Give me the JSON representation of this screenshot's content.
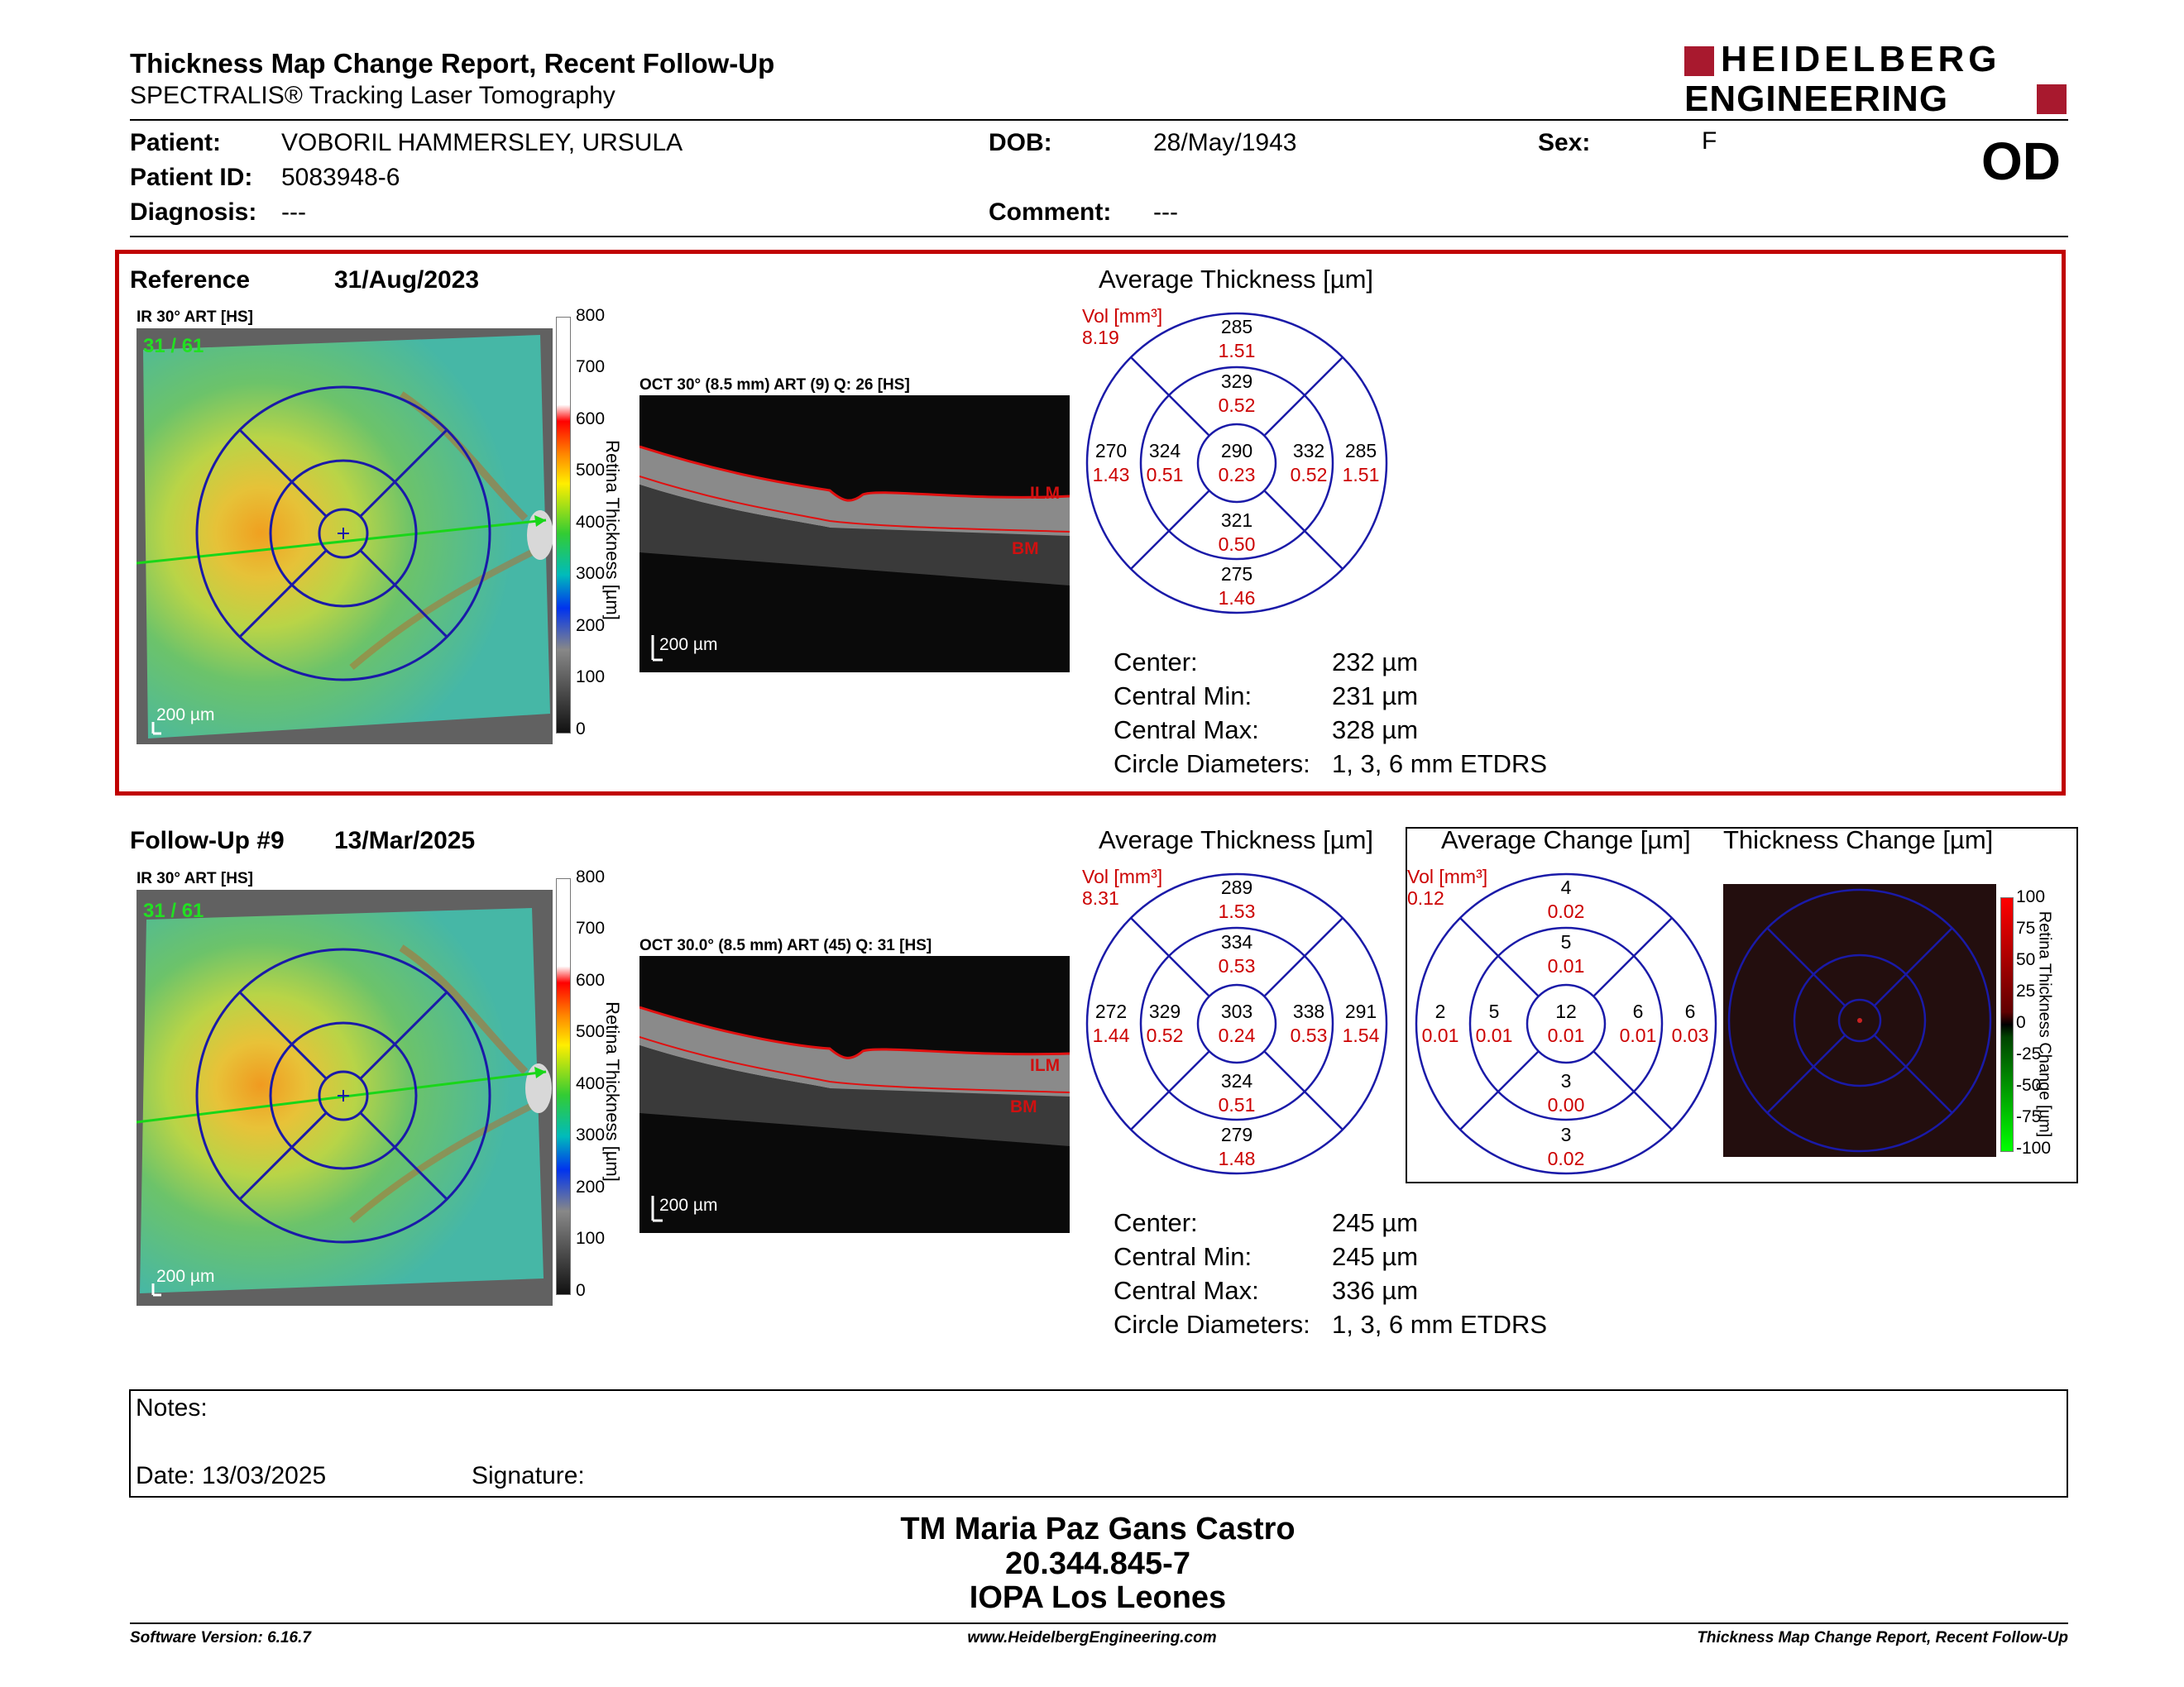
{
  "header": {
    "title": "Thickness Map Change Report, Recent Follow-Up",
    "subtitle": "SPECTRALIS® Tracking Laser Tomography",
    "logo_line1": "HEIDELBERG",
    "logo_line2": "ENGINEERING",
    "eye": "OD"
  },
  "patient": {
    "patient_label": "Patient:",
    "patient_value": "VOBORIL HAMMERSLEY, URSULA",
    "id_label": "Patient ID:",
    "id_value": "5083948-6",
    "diagnosis_label": "Diagnosis:",
    "diagnosis_value": "---",
    "dob_label": "DOB:",
    "dob_value": "28/May/1943",
    "comment_label": "Comment:",
    "comment_value": "---",
    "sex_label": "Sex:",
    "sex_value": "F"
  },
  "reference": {
    "label": "Reference",
    "date": "31/Aug/2023",
    "ir_caption": "IR 30° ART [HS]",
    "ir_overlay": "31 / 61",
    "ir_scale": "200 µm",
    "oct_caption": "OCT 30° (8.5 mm) ART (9) Q: 26 [HS]",
    "oct_scale": "200 µm",
    "avg_title": "Average Thickness [µm]",
    "vol_label": "Vol [mm³]",
    "vol_value": "8.19",
    "grid": {
      "outer_top": [
        "285",
        "1.51"
      ],
      "inner_top": [
        "329",
        "0.52"
      ],
      "outer_left": [
        "270",
        "1.43"
      ],
      "inner_left": [
        "324",
        "0.51"
      ],
      "center": [
        "290",
        "0.23"
      ],
      "inner_right": [
        "332",
        "0.52"
      ],
      "outer_right": [
        "285",
        "1.51"
      ],
      "inner_bottom": [
        "321",
        "0.50"
      ],
      "outer_bottom": [
        "275",
        "1.46"
      ]
    },
    "stats": [
      {
        "label": "Center:",
        "value": "232 µm"
      },
      {
        "label": "Central Min:",
        "value": "231 µm"
      },
      {
        "label": "Central Max:",
        "value": "328 µm"
      },
      {
        "label": "Circle Diameters:",
        "value": "1, 3, 6 mm ETDRS"
      }
    ]
  },
  "followup": {
    "label": "Follow-Up #9",
    "date": "13/Mar/2025",
    "ir_caption": "IR 30° ART [HS]",
    "ir_overlay": "31 / 61",
    "ir_scale": "200 µm",
    "oct_caption": "OCT 30.0° (8.5 mm) ART (45) Q: 31 [HS]",
    "oct_scale": "200 µm",
    "avg_title": "Average Thickness [µm]",
    "vol_label": "Vol [mm³]",
    "vol_value": "8.31",
    "grid": {
      "outer_top": [
        "289",
        "1.53"
      ],
      "inner_top": [
        "334",
        "0.53"
      ],
      "outer_left": [
        "272",
        "1.44"
      ],
      "inner_left": [
        "329",
        "0.52"
      ],
      "center": [
        "303",
        "0.24"
      ],
      "inner_right": [
        "338",
        "0.53"
      ],
      "outer_right": [
        "291",
        "1.54"
      ],
      "inner_bottom": [
        "324",
        "0.51"
      ],
      "outer_bottom": [
        "279",
        "1.48"
      ]
    },
    "change_title": "Average Change [µm]",
    "change_vol_label": "Vol [mm³]",
    "change_vol_value": "0.12",
    "change_grid": {
      "outer_top": [
        "4",
        "0.02"
      ],
      "inner_top": [
        "5",
        "0.01"
      ],
      "outer_left": [
        "2",
        "0.01"
      ],
      "inner_left": [
        "5",
        "0.01"
      ],
      "center": [
        "12",
        "0.01"
      ],
      "inner_right": [
        "6",
        "0.01"
      ],
      "outer_right": [
        "6",
        "0.03"
      ],
      "inner_bottom": [
        "3",
        "0.00"
      ],
      "outer_bottom": [
        "3",
        "0.02"
      ]
    },
    "thickness_change_title": "Thickness Change [µm]",
    "stats": [
      {
        "label": "Center:",
        "value": "245 µm"
      },
      {
        "label": "Central Min:",
        "value": "245 µm"
      },
      {
        "label": "Central Max:",
        "value": "336 µm"
      },
      {
        "label": "Circle Diameters:",
        "value": "1, 3, 6 mm ETDRS"
      }
    ]
  },
  "colorbar": {
    "title": "Retina Thickness [µm]",
    "ticks": [
      "800",
      "700",
      "600",
      "500",
      "400",
      "300",
      "200",
      "100",
      "0"
    ]
  },
  "change_colorbar": {
    "title": "Retina Thickness Change [µm]",
    "ticks": [
      "100",
      "75",
      "50",
      "25",
      "0",
      "-25",
      "-50",
      "-75",
      "-100"
    ]
  },
  "layers": {
    "ilm": "ILM",
    "bm": "BM"
  },
  "notes": {
    "notes_label": "Notes:",
    "date_label": "Date: 13/03/2025",
    "signature_label": "Signature:"
  },
  "signer": {
    "name": "TM Maria Paz Gans Castro",
    "id": "20.344.845-7",
    "org": "IOPA Los Leones"
  },
  "footer": {
    "left": "Software Version: 6.16.7",
    "center": "www.HeidelbergEngineering.com",
    "right": "Thickness Map Change Report, Recent Follow-Up"
  },
  "colors": {
    "frame_red": "#c00000",
    "grid_blue": "#1a1aa8",
    "vol_red": "#cc0000",
    "logo_red": "#a8192e"
  }
}
